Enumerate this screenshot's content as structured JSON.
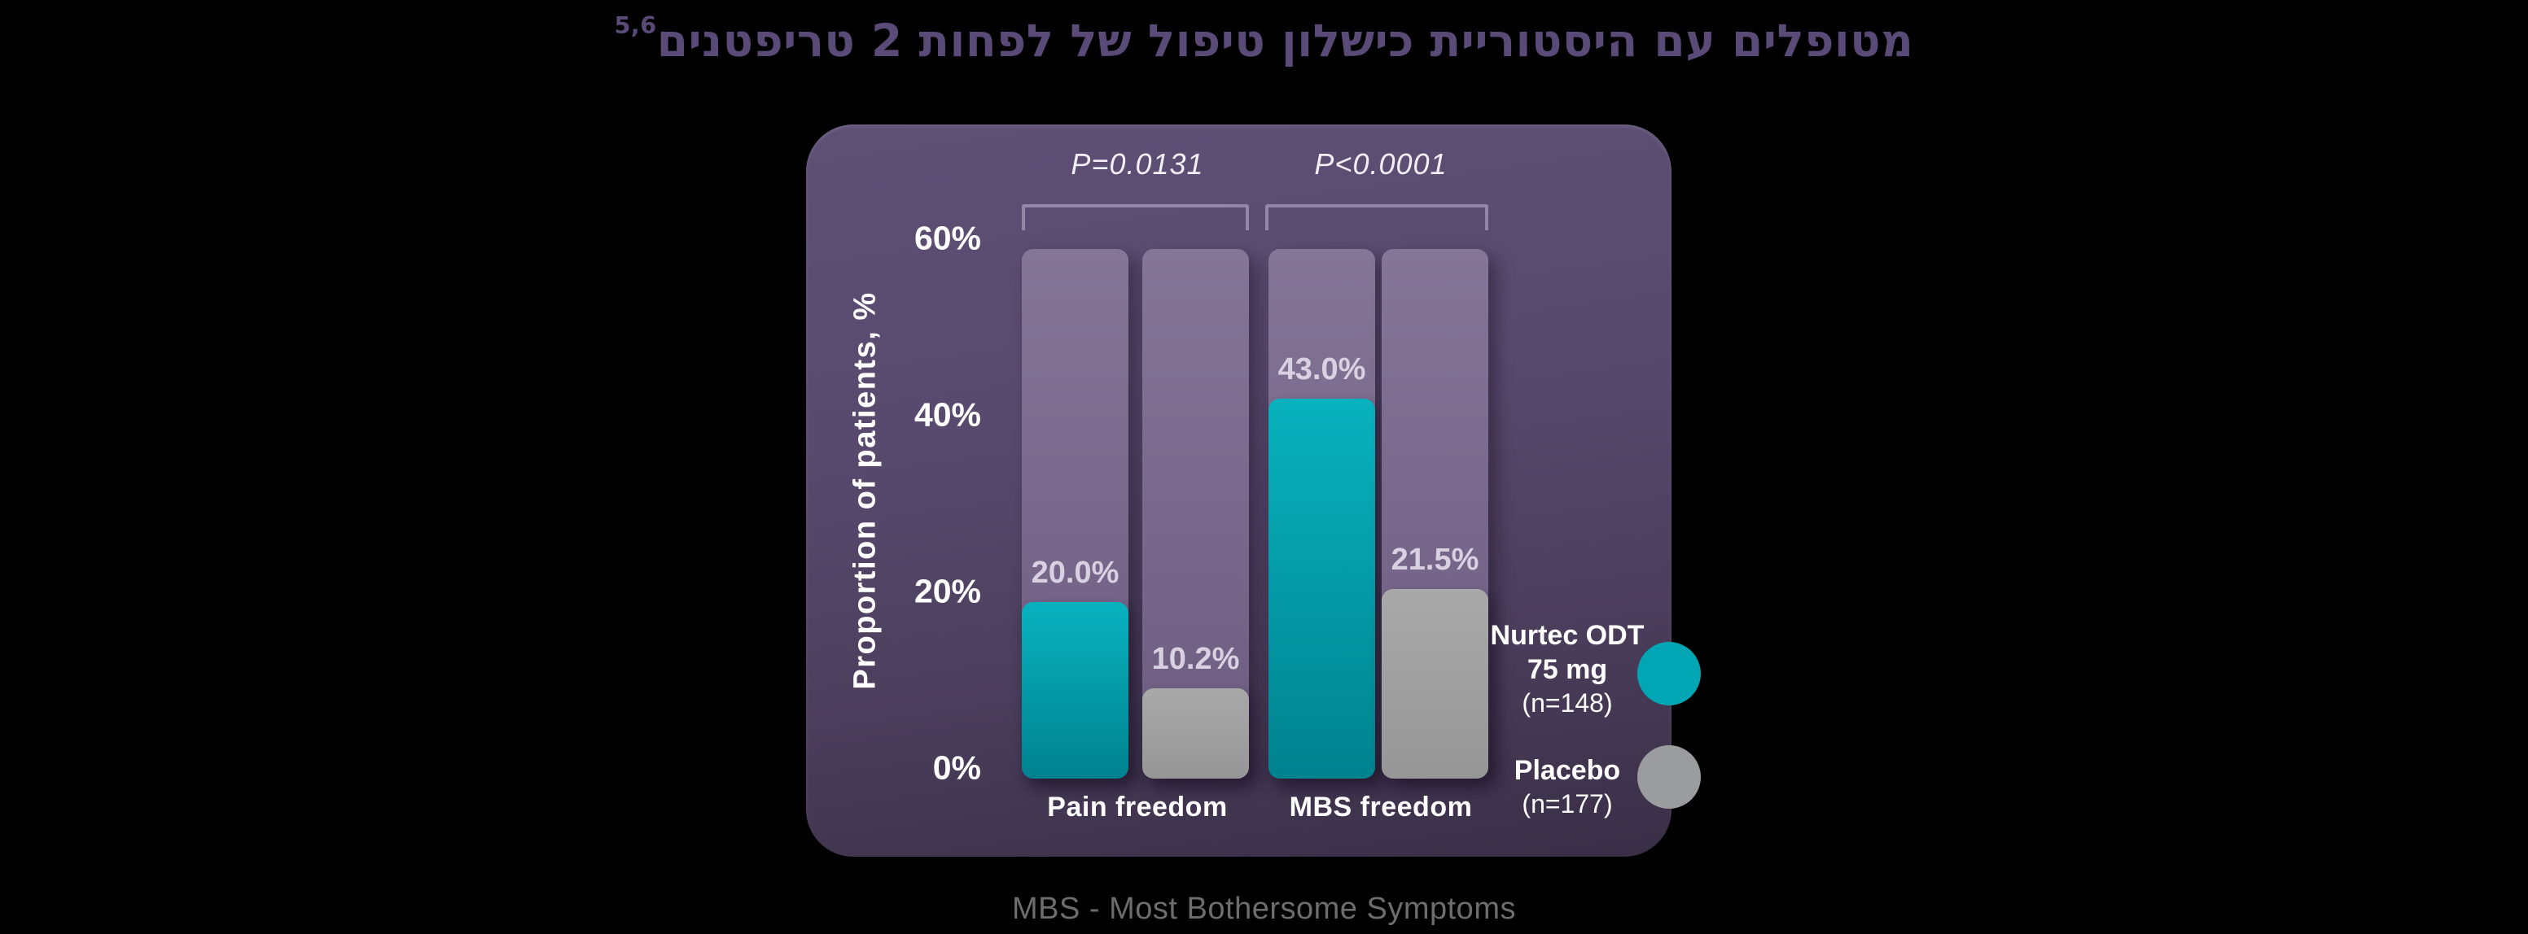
{
  "page": {
    "background": "#000000",
    "title": {
      "text": "מטופלים עם היסטוריית כישלון טיפול של לפחות 2 טריפטנים",
      "superscript": "5,6",
      "color": "#5a4a78"
    },
    "footnote": {
      "text": "MBS - Most Bothersome Symptoms",
      "color": "#6d6d6d"
    }
  },
  "chart_data": {
    "type": "bar",
    "title": "מטופלים עם היסטוריית כישלון טיפול של לפחות 2 טריפטנים",
    "title_reference_marks": "5,6",
    "ylabel": "Proportion of patients, %",
    "yticks": [
      "0%",
      "20%",
      "40%",
      "60%"
    ],
    "ylim": [
      0,
      60
    ],
    "grid": false,
    "legend_position": "right",
    "background_track_max_percent": 60,
    "categories": [
      "Pain freedom",
      "MBS freedom"
    ],
    "series": [
      {
        "name": "Nurtec ODT 75 mg (n=148)",
        "values": [
          20.0,
          43.0
        ],
        "labels": [
          "20.0%",
          "43.0%"
        ],
        "color_top": "#08b2be",
        "color_bottom": "#00828f"
      },
      {
        "name": "Placebo (n=177)",
        "values": [
          10.2,
          21.5
        ],
        "labels": [
          "10.2%",
          "21.5%"
        ],
        "color_top": "#a9a9a9",
        "color_bottom": "#969696"
      }
    ],
    "p_values": [
      "P=0.0131",
      "P<0.0001"
    ]
  },
  "legend": {
    "items": [
      {
        "line1": "Nurtec ODT",
        "line2": "75 mg",
        "n": "(n=148)",
        "color": "#00a6b4"
      },
      {
        "line1": "Placebo",
        "n": "(n=177)",
        "color": "#9b9c9e"
      }
    ]
  },
  "colors": {
    "panel_top": "#5e5075",
    "panel_bottom": "#392e46",
    "track_top": "#847697",
    "track_bottom": "#6c5c80",
    "value_label": "#d7d1e2",
    "axis_text": "#ffffff",
    "bracket": "rgba(203,193,221,0.50)"
  }
}
